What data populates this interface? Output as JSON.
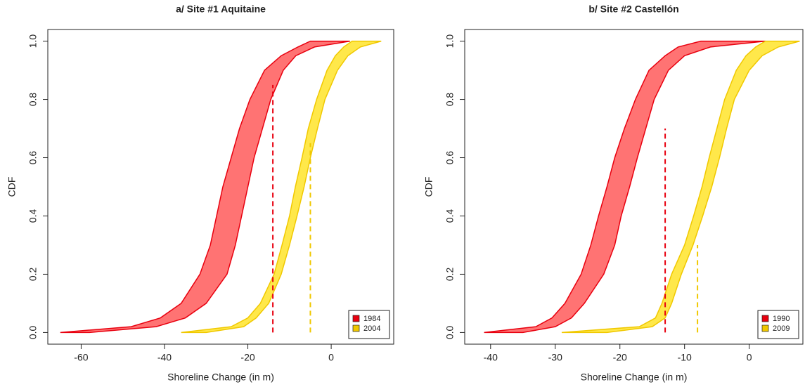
{
  "chart_data": [
    {
      "type": "cdf-band",
      "title": "a/ Site #1 Aquitaine",
      "x_label": "Shoreline Change (in m)",
      "y_label": "CDF",
      "xlim": [
        -68,
        15
      ],
      "ylim": [
        -0.04,
        1.04
      ],
      "xticks": [
        -60,
        -40,
        -20,
        0
      ],
      "yticks": [
        {
          "value": 0,
          "label": "0.0"
        },
        {
          "value": 0.2,
          "label": "0.2"
        },
        {
          "value": 0.4,
          "label": "0.4"
        },
        {
          "value": 0.6,
          "label": "0.6"
        },
        {
          "value": 0.8,
          "label": "0.8"
        },
        {
          "value": 1,
          "label": "1.0"
        }
      ],
      "legend": "bottom-right",
      "cdf": [
        0,
        0.02,
        0.05,
        0.1,
        0.2,
        0.3,
        0.4,
        0.5,
        0.6,
        0.7,
        0.8,
        0.9,
        0.95,
        0.98,
        1.0
      ],
      "series": [
        {
          "name": "1984",
          "color": "#e8000f",
          "fill": "#ff7373",
          "x_left": [
            -65,
            -48,
            -41,
            -36,
            -31.5,
            -29,
            -27.5,
            -26,
            -24,
            -22,
            -19.5,
            -16,
            -12,
            -8,
            -5
          ],
          "x_right": [
            -58,
            -42,
            -35,
            -30,
            -25,
            -23,
            -21.5,
            -20,
            -18.5,
            -16.5,
            -14.5,
            -11.5,
            -8.5,
            -4,
            4.5
          ],
          "threshold": -14,
          "threshold_cdf": 0.85
        },
        {
          "name": "2004",
          "color": "#f0c800",
          "fill": "#ffe84a",
          "x_left": [
            -36,
            -24,
            -20,
            -17,
            -13.7,
            -11.8,
            -10,
            -8.6,
            -7,
            -5.5,
            -3.5,
            -1,
            1,
            3,
            5
          ],
          "x_right": [
            -30,
            -21,
            -18,
            -15,
            -12,
            -10,
            -8.2,
            -6.5,
            -5,
            -3.3,
            -1.5,
            1.5,
            4,
            7,
            12
          ],
          "threshold": -5,
          "threshold_cdf": 0.65
        }
      ]
    },
    {
      "type": "cdf-band",
      "title": "b/ Site #2 Castellón",
      "x_label": "Shoreline Change (in m)",
      "y_label": "CDF",
      "xlim": [
        -44,
        8.3
      ],
      "ylim": [
        -0.04,
        1.04
      ],
      "xticks": [
        -40,
        -30,
        -20,
        -10,
        0
      ],
      "yticks": [
        {
          "value": 0,
          "label": "0.0"
        },
        {
          "value": 0.2,
          "label": "0.2"
        },
        {
          "value": 0.4,
          "label": "0.4"
        },
        {
          "value": 0.6,
          "label": "0.6"
        },
        {
          "value": 0.8,
          "label": "0.8"
        },
        {
          "value": 1,
          "label": "1.0"
        }
      ],
      "legend": "bottom-right",
      "cdf": [
        0,
        0.02,
        0.05,
        0.1,
        0.2,
        0.3,
        0.4,
        0.5,
        0.6,
        0.7,
        0.8,
        0.9,
        0.95,
        0.98,
        1.0
      ],
      "series": [
        {
          "name": "1990",
          "color": "#e8000f",
          "fill": "#ff7373",
          "x_left": [
            -41,
            -33,
            -30.5,
            -28.5,
            -26,
            -24.5,
            -23.3,
            -22,
            -20.8,
            -19.3,
            -17.6,
            -15.5,
            -13,
            -11,
            -7.5
          ],
          "x_right": [
            -35,
            -30,
            -27.5,
            -25.5,
            -22.5,
            -20.8,
            -19.8,
            -18.5,
            -17.3,
            -16,
            -14.7,
            -12.5,
            -10,
            -6,
            2.5
          ],
          "threshold": -13,
          "threshold_cdf": 0.7
        },
        {
          "name": "2009",
          "color": "#f0c800",
          "fill": "#ffe84a",
          "x_left": [
            -29,
            -17,
            -14.5,
            -13.5,
            -12,
            -10,
            -8.6,
            -7.3,
            -6.2,
            -5,
            -3.8,
            -2,
            -0.5,
            1,
            2.5
          ],
          "x_right": [
            -22,
            -15,
            -13,
            -12,
            -10.5,
            -8.7,
            -7.2,
            -5.8,
            -4.6,
            -3.5,
            -2.3,
            0,
            2,
            4.5,
            7.8
          ],
          "threshold": -8,
          "threshold_cdf": 0.3
        }
      ]
    }
  ]
}
